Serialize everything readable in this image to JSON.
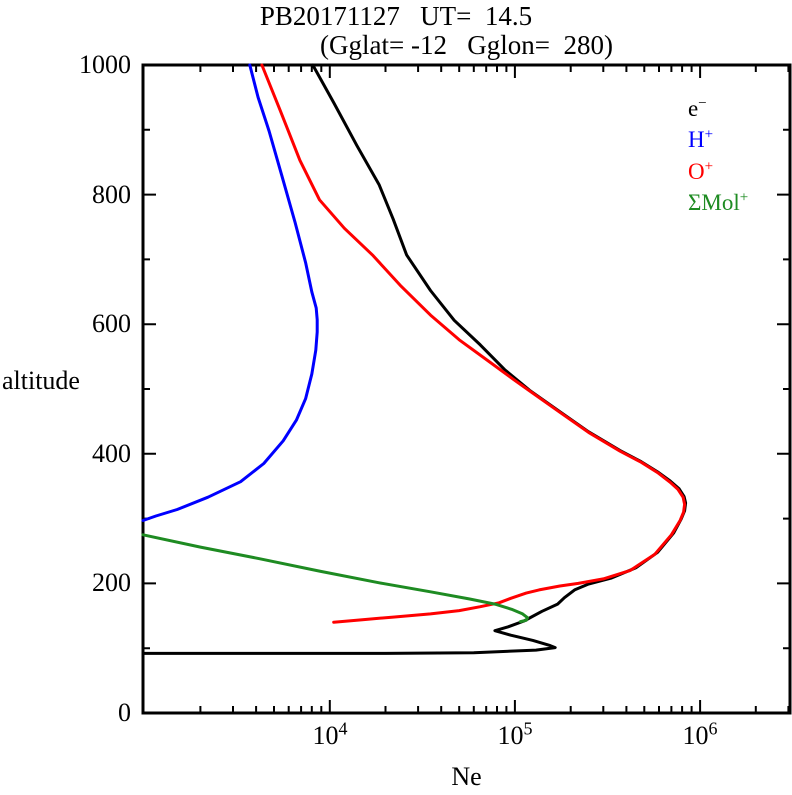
{
  "title": "PB20171127   UT=  14.5",
  "subtitle": "(Gglat= -12   Gglon=  280)",
  "axes": {
    "x_label": "Ne",
    "y_label": "altitude",
    "y_tick_labels": [
      "0",
      "200",
      "400",
      "600",
      "800",
      "1000"
    ],
    "x_tick_base": "10",
    "x_tick_exponents": [
      "4",
      "5",
      "6"
    ]
  },
  "legend": [
    {
      "id": "electron",
      "base": "e",
      "sup": "−",
      "color": "#000000"
    },
    {
      "id": "h-plus",
      "base": "H",
      "sup": "+",
      "color": "#0000ff"
    },
    {
      "id": "o-plus",
      "base": "O",
      "sup": "+",
      "color": "#ff0000"
    },
    {
      "id": "mol-plus",
      "base": "ΣMol",
      "sup": "+",
      "color": "#1e8b22"
    }
  ],
  "chart_data": {
    "type": "line",
    "title": "PB20171127  UT= 14.5",
    "subtitle": "(Gglat= -12  Gglon= 280)",
    "xlabel": "Ne",
    "ylabel": "altitude",
    "x_scale": "log",
    "xlim": [
      980,
      3060000
    ],
    "ylim": [
      0,
      1000
    ],
    "grid": false,
    "legend_position": "inside-upper-right",
    "series": [
      {
        "id": "electron",
        "name": "e-",
        "color": "#000000",
        "points": [
          [
            8100.0,
            1000
          ],
          [
            10500.0,
            942
          ],
          [
            14000.0,
            876
          ],
          [
            18500.0,
            815
          ],
          [
            22000.0,
            762
          ],
          [
            26000.0,
            707
          ],
          [
            35000.0,
            652
          ],
          [
            47000.0,
            606
          ],
          [
            65000.0,
            568
          ],
          [
            88000.0,
            530
          ],
          [
            120000.0,
            498
          ],
          [
            175000.0,
            465
          ],
          [
            250000.0,
            434
          ],
          [
            370000.0,
            405
          ],
          [
            480000.0,
            388
          ],
          [
            590000.0,
            372
          ],
          [
            690000.0,
            358
          ],
          [
            770000.0,
            346
          ],
          [
            820000.0,
            334
          ],
          [
            835000.0,
            324
          ],
          [
            825000.0,
            312
          ],
          [
            790000.0,
            299
          ],
          [
            720000.0,
            278
          ],
          [
            590000.0,
            248
          ],
          [
            450000.0,
            224
          ],
          [
            330000.0,
            208
          ],
          [
            250000.0,
            199
          ],
          [
            210000.0,
            190
          ],
          [
            185000.0,
            178
          ],
          [
            170000.0,
            168
          ],
          [
            140000.0,
            157
          ],
          [
            112000.0,
            142
          ],
          [
            92000.0,
            133
          ],
          [
            78000.0,
            127
          ],
          [
            95000.0,
            120
          ],
          [
            125000.0,
            112
          ],
          [
            155000.0,
            104
          ],
          [
            165000.0,
            101
          ],
          [
            130000.0,
            97
          ],
          [
            60000.0,
            93
          ],
          [
            20000.0,
            92
          ],
          [
            4000.0,
            92
          ],
          [
            980.0,
            92
          ]
        ]
      },
      {
        "id": "h-plus",
        "name": "H+",
        "color": "#0000ff",
        "points": [
          [
            3700.0,
            1000
          ],
          [
            4100.0,
            950
          ],
          [
            4700.0,
            898
          ],
          [
            5500.0,
            830
          ],
          [
            6500.0,
            757
          ],
          [
            7400.0,
            695
          ],
          [
            8000.0,
            650
          ],
          [
            8450.0,
            625
          ],
          [
            8550.0,
            607
          ],
          [
            8550.0,
            588
          ],
          [
            8400.0,
            560
          ],
          [
            8000.0,
            523
          ],
          [
            7400.0,
            485
          ],
          [
            6600.0,
            452
          ],
          [
            5600.0,
            420
          ],
          [
            4400.0,
            385
          ],
          [
            3300.0,
            357
          ],
          [
            2200.0,
            333
          ],
          [
            1500.0,
            314
          ],
          [
            1150.0,
            304
          ],
          [
            980.0,
            297
          ]
        ]
      },
      {
        "id": "o-plus",
        "name": "O+",
        "color": "#ff0000",
        "points": [
          [
            4300.0,
            1000
          ],
          [
            5400.0,
            930
          ],
          [
            6900.0,
            853
          ],
          [
            8800.0,
            792
          ],
          [
            12000.0,
            748
          ],
          [
            17000.0,
            707
          ],
          [
            24000.0,
            660
          ],
          [
            35000.0,
            614
          ],
          [
            50000.0,
            576
          ],
          [
            72000.0,
            543
          ],
          [
            98000.0,
            515
          ],
          [
            120000.0,
            497
          ],
          [
            175000.0,
            464
          ],
          [
            250000.0,
            433
          ],
          [
            370000.0,
            404
          ],
          [
            480000.0,
            387
          ],
          [
            590000.0,
            371
          ],
          [
            690000.0,
            356
          ],
          [
            760000.0,
            345
          ],
          [
            810000.0,
            333
          ],
          [
            825000.0,
            322
          ],
          [
            815000.0,
            310
          ],
          [
            780000.0,
            297
          ],
          [
            700000.0,
            275
          ],
          [
            570000.0,
            245
          ],
          [
            420000.0,
            220
          ],
          [
            300000.0,
            207
          ],
          [
            220000.0,
            200
          ],
          [
            175000.0,
            196
          ],
          [
            135000.0,
            190
          ],
          [
            115000.0,
            185
          ],
          [
            95000.0,
            177
          ],
          [
            82000.0,
            170
          ],
          [
            65000.0,
            164
          ],
          [
            50000.0,
            158
          ],
          [
            35000.0,
            153
          ],
          [
            22000.0,
            148
          ],
          [
            15000.0,
            144
          ],
          [
            10500.0,
            140
          ]
        ]
      },
      {
        "id": "mol-plus",
        "name": "ΣMol+",
        "color": "#1e8b22",
        "points": [
          [
            980.0,
            275
          ],
          [
            2000.0,
            256
          ],
          [
            4200.0,
            238
          ],
          [
            8800.0,
            219
          ],
          [
            18500.0,
            201
          ],
          [
            35000.0,
            187
          ],
          [
            57000.0,
            176
          ],
          [
            78000.0,
            168
          ],
          [
            96000.0,
            160
          ],
          [
            110000.0,
            153
          ],
          [
            117000.0,
            147
          ],
          [
            115000.0,
            143
          ],
          [
            107000.0,
            141
          ]
        ]
      }
    ]
  }
}
